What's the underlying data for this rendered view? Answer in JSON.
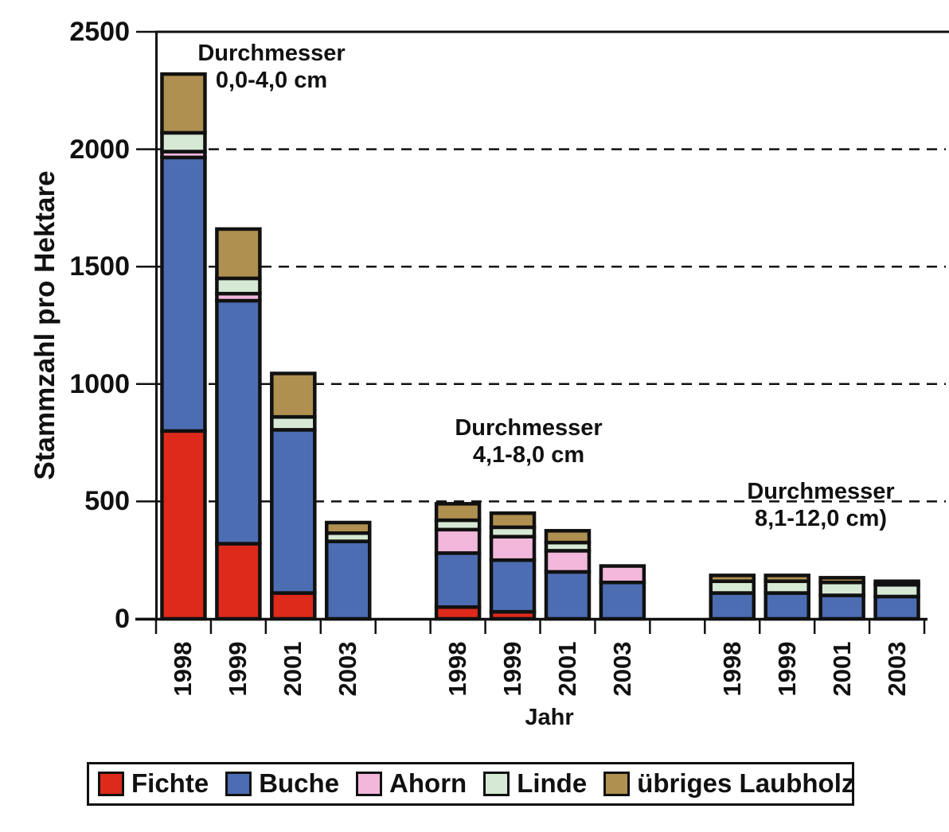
{
  "chart_data": {
    "type": "bar",
    "stacked": true,
    "title": "",
    "xlabel": "Jahr",
    "ylabel": "Stammzahl pro Hektare",
    "ylim": [
      0,
      2500
    ],
    "yticks": [
      0,
      500,
      1000,
      1500,
      2000,
      2500
    ],
    "grid": "horizontal dashed lines at 500, 1000, 1500, 2000; solid line at 2500",
    "legend_position": "bottom",
    "legend": [
      "Fichte",
      "Buche",
      "Ahorn",
      "Linde",
      "übriges Laubholz"
    ],
    "colors": {
      "Fichte": "#DE2A1B",
      "Buche": "#4D6DB3",
      "Ahorn": "#F2B7DB",
      "Linde": "#D6E9D4",
      "übriges Laubholz": "#B09050"
    },
    "axis_color": "#111111",
    "groups": [
      {
        "title_lines": [
          "Durchmesser",
          "0,0-4,0 cm"
        ],
        "years": [
          "1998",
          "1999",
          "2001",
          "2003"
        ],
        "series": [
          {
            "name": "Fichte",
            "values": [
              800,
              320,
              110,
              0
            ]
          },
          {
            "name": "Buche",
            "values": [
              1165,
              1035,
              695,
              330
            ]
          },
          {
            "name": "Ahorn",
            "values": [
              25,
              30,
              0,
              0
            ]
          },
          {
            "name": "Linde",
            "values": [
              80,
              65,
              55,
              35
            ]
          },
          {
            "name": "übriges Laubholz",
            "values": [
              250,
              210,
              185,
              45
            ]
          }
        ],
        "totals": [
          2320,
          1660,
          1045,
          410
        ]
      },
      {
        "title_lines": [
          "Durchmesser",
          "4,1-8,0 cm"
        ],
        "years": [
          "1998",
          "1999",
          "2001",
          "2003"
        ],
        "series": [
          {
            "name": "Fichte",
            "values": [
              50,
              30,
              0,
              0
            ]
          },
          {
            "name": "Buche",
            "values": [
              230,
              220,
              200,
              155
            ]
          },
          {
            "name": "Ahorn",
            "values": [
              100,
              100,
              90,
              70
            ]
          },
          {
            "name": "Linde",
            "values": [
              40,
              40,
              35,
              0
            ]
          },
          {
            "name": "übriges Laubholz",
            "values": [
              70,
              60,
              50,
              0
            ]
          }
        ],
        "totals": [
          490,
          450,
          375,
          225
        ]
      },
      {
        "title_lines": [
          "Durchmesser",
          "8,1-12,0 cm)"
        ],
        "years": [
          "1998",
          "1999",
          "2001",
          "2003"
        ],
        "series": [
          {
            "name": "Fichte",
            "values": [
              0,
              0,
              0,
              0
            ]
          },
          {
            "name": "Buche",
            "values": [
              110,
              110,
              100,
              95
            ]
          },
          {
            "name": "Ahorn",
            "values": [
              0,
              0,
              0,
              0
            ]
          },
          {
            "name": "Linde",
            "values": [
              50,
              50,
              55,
              50
            ]
          },
          {
            "name": "übriges Laubholz",
            "values": [
              25,
              25,
              20,
              15
            ]
          }
        ],
        "totals": [
          185,
          185,
          175,
          160
        ]
      }
    ]
  }
}
